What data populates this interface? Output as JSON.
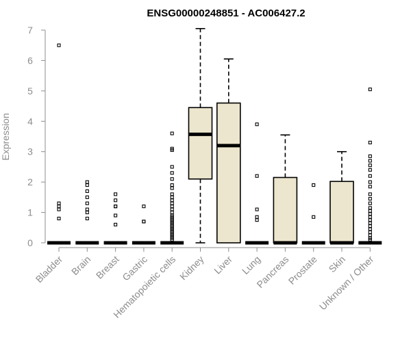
{
  "chart_data": {
    "type": "box",
    "title": "ENSG00000248851 - AC006427.2",
    "xlabel": "",
    "ylabel": "Expression",
    "ylim": [
      0,
      7
    ],
    "yticks": [
      0,
      1,
      2,
      3,
      4,
      5,
      6,
      7
    ],
    "grid": false,
    "colors": {
      "box_fill": "#ece6ce",
      "stroke": "#000000",
      "axis": "#8c8c8c"
    },
    "categories": [
      "Bladder",
      "Brain",
      "Breast",
      "Gastric",
      "Hematopoietic cells",
      "Kidney",
      "Liver",
      "Lung",
      "Pancreas",
      "Prostate",
      "Skin",
      "Unknown / Other"
    ],
    "boxes": [
      {
        "q1": 0,
        "median": 0,
        "q3": 0,
        "whisker_low": 0,
        "whisker_high": 0,
        "outliers": [
          6.5,
          1.3,
          1.2,
          1.1,
          0.8
        ]
      },
      {
        "q1": 0,
        "median": 0,
        "q3": 0,
        "whisker_low": 0,
        "whisker_high": 0,
        "outliers": [
          2.0,
          1.9,
          1.7,
          1.5,
          1.3,
          1.1,
          1.0,
          0.8
        ]
      },
      {
        "q1": 0,
        "median": 0,
        "q3": 0,
        "whisker_low": 0,
        "whisker_high": 0,
        "outliers": [
          1.6,
          1.4,
          1.2,
          1.2,
          0.9,
          0.6
        ]
      },
      {
        "q1": 0,
        "median": 0,
        "q3": 0,
        "whisker_low": 0,
        "whisker_high": 0,
        "outliers": [
          1.2,
          0.7,
          0.7
        ]
      },
      {
        "q1": 0,
        "median": 0,
        "q3": 0,
        "whisker_low": 0,
        "whisker_high": 0,
        "outliers": [
          3.6,
          3.1,
          3.05,
          2.5,
          2.3,
          2.1,
          1.9,
          1.8,
          1.6,
          1.5,
          1.4,
          1.3,
          1.2,
          1.1,
          1.0,
          0.9,
          0.85,
          0.8,
          0.75,
          0.7,
          0.65,
          0.6,
          0.55,
          0.5,
          0.45,
          0.4,
          0.35,
          0.3,
          0.25,
          0.2,
          0.15,
          0.1
        ]
      },
      {
        "q1": 2.1,
        "median": 3.57,
        "q3": 4.45,
        "whisker_low": 0,
        "whisker_high": 7.05,
        "outliers": []
      },
      {
        "q1": 0,
        "median": 3.2,
        "q3": 4.6,
        "whisker_low": 0,
        "whisker_high": 6.05,
        "outliers": []
      },
      {
        "q1": 0,
        "median": 0,
        "q3": 0,
        "whisker_low": 0,
        "whisker_high": 0,
        "outliers": [
          3.9,
          2.2,
          1.1,
          0.85,
          0.75
        ]
      },
      {
        "q1": 0,
        "median": 0,
        "q3": 2.15,
        "whisker_low": 0,
        "whisker_high": 3.55,
        "outliers": []
      },
      {
        "q1": 0,
        "median": 0,
        "q3": 0,
        "whisker_low": 0,
        "whisker_high": 0,
        "outliers": [
          1.9,
          0.85
        ]
      },
      {
        "q1": 0,
        "median": 0,
        "q3": 2.02,
        "whisker_low": 0,
        "whisker_high": 3.0,
        "outliers": []
      },
      {
        "q1": 0,
        "median": 0,
        "q3": 0,
        "whisker_low": 0,
        "whisker_high": 0,
        "outliers": [
          5.05,
          3.3,
          2.85,
          2.7,
          2.55,
          2.4,
          2.2,
          2.0,
          1.85,
          1.6,
          1.45,
          1.3,
          1.15,
          1.05,
          0.95,
          0.85,
          0.75,
          0.65,
          0.55,
          0.45,
          0.35,
          0.25,
          0.15,
          0.1
        ]
      }
    ]
  }
}
